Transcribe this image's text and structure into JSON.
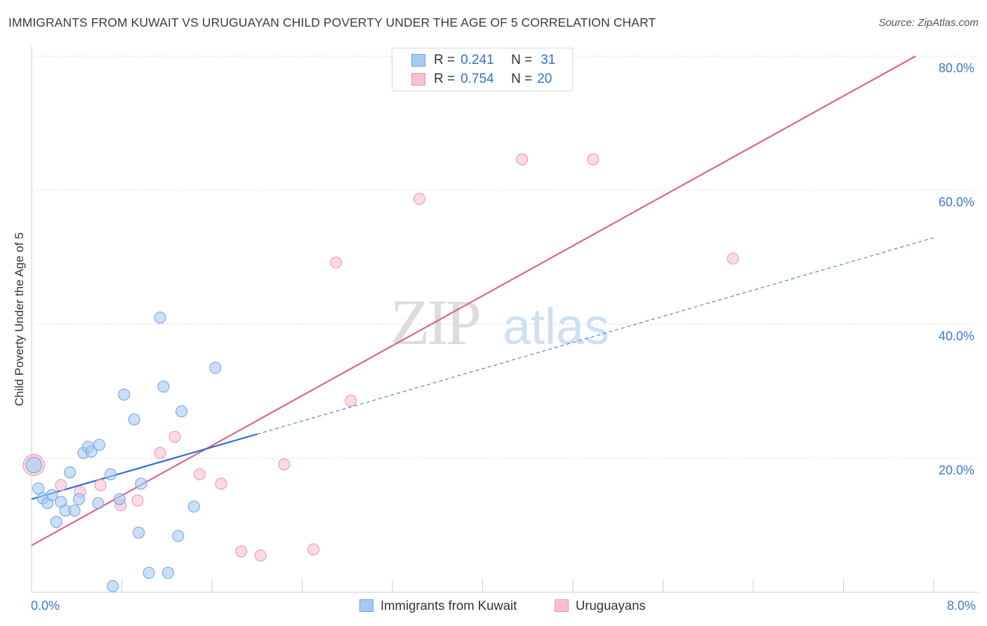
{
  "header": {
    "title": "IMMIGRANTS FROM KUWAIT VS URUGUAYAN CHILD POVERTY UNDER THE AGE OF 5 CORRELATION CHART",
    "source": "Source: ZipAtlas.com"
  },
  "watermark": {
    "zip": "ZIP",
    "atlas": "atlas"
  },
  "legend": {
    "rows": [
      {
        "r_label": "R =",
        "r_value": "0.241",
        "n_label": "N =",
        "n_value": "31"
      },
      {
        "r_label": "R =",
        "r_value": "0.754",
        "n_label": "N =",
        "n_value": "20"
      }
    ]
  },
  "colors": {
    "blue_fill": "#a9c9f1",
    "blue_stroke": "#6ea1e0",
    "blue_line": "#2e6fd1",
    "pink_fill": "#f7c1d2",
    "pink_stroke": "#e993b0",
    "pink_line": "#e0628c",
    "grid": "#dcdcdc",
    "tick_text": "#3b78d8"
  },
  "chart_data": {
    "type": "scatter",
    "title": "IMMIGRANTS FROM KUWAIT VS URUGUAYAN CHILD POVERTY UNDER THE AGE OF 5 CORRELATION CHART",
    "xlabel": "",
    "ylabel": "Child Poverty Under the Age of 5",
    "xlim": [
      0,
      8
    ],
    "ylim": [
      0,
      80
    ],
    "x_tick_labels": [
      "0.0%",
      "8.0%"
    ],
    "y_ticks": [
      20,
      40,
      60,
      80
    ],
    "y_tick_labels": [
      "20.0%",
      "40.0%",
      "60.0%",
      "80.0%"
    ],
    "grid": true,
    "legend_position": "top-center",
    "series": [
      {
        "name": "Immigrants from Kuwait",
        "color": "#a9c9f1",
        "r": 0.241,
        "n": 31,
        "points": [
          [
            0.02,
            19.0,
            1.4
          ],
          [
            0.06,
            15.5,
            1.0
          ],
          [
            0.1,
            14.0,
            1.0
          ],
          [
            0.14,
            13.3,
            1.0
          ],
          [
            0.18,
            14.5,
            1.0
          ],
          [
            0.22,
            10.5,
            1.0
          ],
          [
            0.26,
            13.5,
            1.0
          ],
          [
            0.3,
            12.2,
            1.0
          ],
          [
            0.34,
            17.9,
            1.0
          ],
          [
            0.38,
            12.2,
            1.0
          ],
          [
            0.42,
            13.9,
            1.0
          ],
          [
            0.46,
            20.8,
            1.0
          ],
          [
            0.5,
            21.7,
            1.0
          ],
          [
            0.53,
            21.0,
            1.0
          ],
          [
            0.6,
            22.0,
            1.0
          ],
          [
            0.59,
            13.3,
            1.0
          ],
          [
            0.7,
            17.6,
            1.0
          ],
          [
            0.72,
            0.9,
            1.0
          ],
          [
            0.78,
            13.9,
            1.0
          ],
          [
            0.82,
            29.5,
            1.0
          ],
          [
            0.91,
            25.8,
            1.0
          ],
          [
            0.95,
            8.9,
            1.0
          ],
          [
            0.97,
            16.2,
            1.0
          ],
          [
            1.04,
            2.9,
            1.0
          ],
          [
            1.14,
            41.0,
            1.0
          ],
          [
            1.17,
            30.7,
            1.0
          ],
          [
            1.21,
            2.9,
            1.0
          ],
          [
            1.3,
            8.4,
            1.0
          ],
          [
            1.33,
            27.0,
            1.0
          ],
          [
            1.44,
            12.8,
            1.0
          ],
          [
            1.63,
            33.5,
            1.0
          ]
        ],
        "trend": {
          "x0": 0.0,
          "y0": 13.9,
          "x1": 2.0,
          "y1": 23.6,
          "dashed_to_x": 8.0,
          "dashed_to_y": 52.9
        }
      },
      {
        "name": "Uruguayans",
        "color": "#f7c1d2",
        "r": 0.754,
        "n": 20,
        "points": [
          [
            0.02,
            19.0,
            1.9
          ],
          [
            0.26,
            16.0,
            1.0
          ],
          [
            0.43,
            15.0,
            1.0
          ],
          [
            0.61,
            16.0,
            1.0
          ],
          [
            0.79,
            13.0,
            1.0
          ],
          [
            0.94,
            13.7,
            1.0
          ],
          [
            1.14,
            20.8,
            1.0
          ],
          [
            1.27,
            23.2,
            1.0
          ],
          [
            1.49,
            17.6,
            1.0
          ],
          [
            1.68,
            16.2,
            1.0
          ],
          [
            1.86,
            6.1,
            1.0
          ],
          [
            2.03,
            5.5,
            1.0
          ],
          [
            2.24,
            19.1,
            1.0
          ],
          [
            2.5,
            6.4,
            1.0
          ],
          [
            2.7,
            49.2,
            1.0
          ],
          [
            2.83,
            28.6,
            1.0
          ],
          [
            3.44,
            58.7,
            1.0
          ],
          [
            4.35,
            64.6,
            1.0
          ],
          [
            4.98,
            64.6,
            1.0
          ],
          [
            6.22,
            49.8,
            1.0
          ]
        ],
        "trend": {
          "x0": 0.0,
          "y0": 7.0,
          "x1": 7.84,
          "y1": 80.0
        }
      }
    ]
  }
}
